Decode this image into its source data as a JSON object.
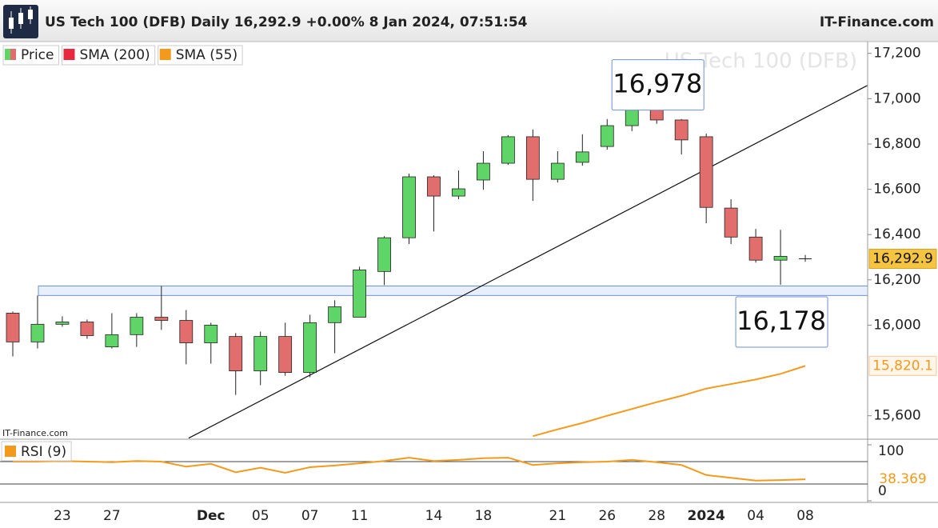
{
  "header": {
    "title": "US Tech 100 (DFB) Daily 16,292.9 +0.00% 8 Jan 2024, 07:51:54",
    "brand": "IT-Finance.com"
  },
  "chart_data": [
    {
      "type": "candlestick",
      "watermark": "US Tech 100 (DFB)",
      "credit": "IT-Finance.com",
      "categories": [
        null,
        null,
        "23",
        null,
        "27",
        null,
        null,
        null,
        "Dec",
        null,
        "05",
        null,
        "07",
        null,
        "11",
        null,
        null,
        "14",
        null,
        "18",
        null,
        null,
        "21",
        null,
        "26",
        null,
        "28",
        null,
        "2024",
        null,
        "04",
        null,
        "08"
      ],
      "series": [
        {
          "name": "Price",
          "up_color": "#5fd467",
          "down_color": "#e26d6d",
          "open": [
            16053,
            15926,
            16004,
            16014,
            15904,
            15958,
            16035,
            16021,
            15922,
            15950,
            15798,
            15950,
            15791,
            16011,
            16035,
            16237,
            16386,
            16655,
            16570,
            16641,
            16715,
            16832,
            16644,
            16719,
            16789,
            16881,
            16952,
            16906,
            16832,
            16517,
            16389,
            16287,
            16292.9
          ],
          "high": [
            16060,
            16131,
            16039,
            16025,
            16053,
            16053,
            16173,
            16067,
            16011,
            15965,
            15972,
            16011,
            16046,
            16110,
            16258,
            16393,
            16669,
            16662,
            16683,
            16768,
            16839,
            16864,
            16768,
            16843,
            16910,
            16963,
            16978,
            16910,
            16846,
            16556,
            16425,
            16421,
            16310
          ],
          "low": [
            15862,
            15897,
            15993,
            15940,
            15897,
            15904,
            15979,
            15827,
            15830,
            15692,
            15735,
            15777,
            15770,
            15876,
            16035,
            16177,
            16358,
            16414,
            16556,
            16598,
            16708,
            16549,
            16630,
            16704,
            16775,
            16857,
            16889,
            16754,
            16450,
            16358,
            16276,
            16178,
            16280
          ],
          "values": [
            15926,
            16004,
            16014,
            15954,
            15958,
            16035,
            16021,
            15922,
            16000,
            15798,
            15950,
            15791,
            16011,
            16081,
            16244,
            16386,
            16655,
            16570,
            16602,
            16715,
            16832,
            16644,
            16715,
            16765,
            16881,
            16956,
            16906,
            16818,
            16520,
            16389,
            16287,
            16304,
            16292.9
          ],
          "last_label": "16,292.9"
        },
        {
          "name": "SMA (200)",
          "color": "#e8283c",
          "values": [
            null,
            null,
            null,
            null,
            null,
            null,
            null,
            null,
            null,
            null,
            null,
            null,
            null,
            null,
            null,
            null,
            null,
            null,
            null,
            null,
            null,
            null,
            null,
            null,
            null,
            null,
            null,
            null,
            null,
            null,
            null,
            null,
            null
          ]
        },
        {
          "name": "SMA (55)",
          "color": "#f39a1c",
          "values": [
            null,
            null,
            null,
            null,
            null,
            null,
            null,
            null,
            null,
            null,
            null,
            null,
            null,
            null,
            null,
            null,
            null,
            null,
            null,
            null,
            null,
            15510,
            15540,
            15568,
            15600,
            15630,
            15660,
            15688,
            15720,
            15740,
            15760,
            15785,
            15820.1
          ],
          "last_label": "15,820.1"
        }
      ],
      "zone": [
        16131,
        16173
      ],
      "trendline": {
        "start": [
          7.1,
          15501
        ],
        "end": [
          34.5,
          17058
        ]
      },
      "annotations": [
        {
          "text": "16,978",
          "value": 16978,
          "index": 26
        },
        {
          "text": "16,178",
          "value": 16178,
          "index": 31
        }
      ],
      "ylim": [
        15500,
        17245
      ],
      "yticks": [
        {
          "value": 15600,
          "label": "15,600"
        },
        {
          "value": 16000,
          "label": "16,000"
        },
        {
          "value": 16200,
          "label": "16,200"
        },
        {
          "value": 16400,
          "label": "16,400"
        },
        {
          "value": 16600,
          "label": "16,600"
        },
        {
          "value": 16800,
          "label": "16,800"
        },
        {
          "value": 17000,
          "label": "17,000"
        },
        {
          "value": 17200,
          "label": "17,200"
        }
      ],
      "grid": false
    },
    {
      "type": "line",
      "title": "RSI (9)",
      "color": "#f39a1c",
      "values": [
        70,
        70,
        71,
        70,
        69,
        71,
        70,
        61,
        66,
        51,
        59,
        50,
        60,
        63,
        67,
        71,
        77,
        71,
        73,
        76,
        77,
        64,
        67,
        69,
        70,
        73,
        69,
        64,
        46,
        41,
        36,
        37,
        38.369
      ],
      "levels": [
        70,
        30
      ],
      "ylim": [
        0,
        100
      ],
      "yticks": [
        0,
        100
      ]
    }
  ]
}
